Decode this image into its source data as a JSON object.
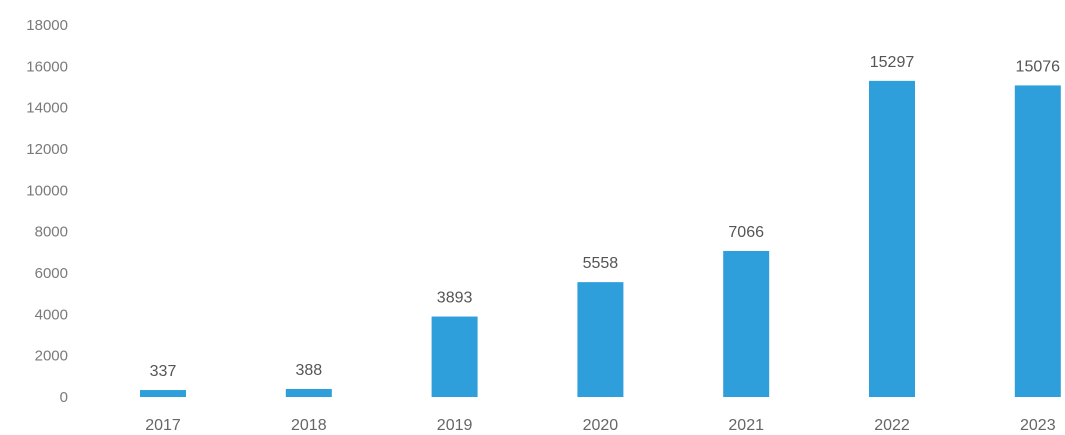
{
  "chart_data": {
    "type": "bar",
    "categories": [
      "2017",
      "2018",
      "2019",
      "2020",
      "2021",
      "2022",
      "2023"
    ],
    "values": [
      337,
      388,
      3893,
      5558,
      7066,
      15297,
      15076
    ],
    "data_labels": [
      "337",
      "388",
      "3893",
      "5558",
      "7066",
      "15297",
      "15076"
    ],
    "yticks": [
      "0",
      "2000",
      "4000",
      "6000",
      "8000",
      "10000",
      "12000",
      "14000",
      "16000",
      "18000"
    ],
    "ylim": [
      0,
      18000
    ],
    "title": "",
    "xlabel": "",
    "ylabel": "",
    "grid": false,
    "legend": "none",
    "bar_color": "#2e9fdb"
  }
}
